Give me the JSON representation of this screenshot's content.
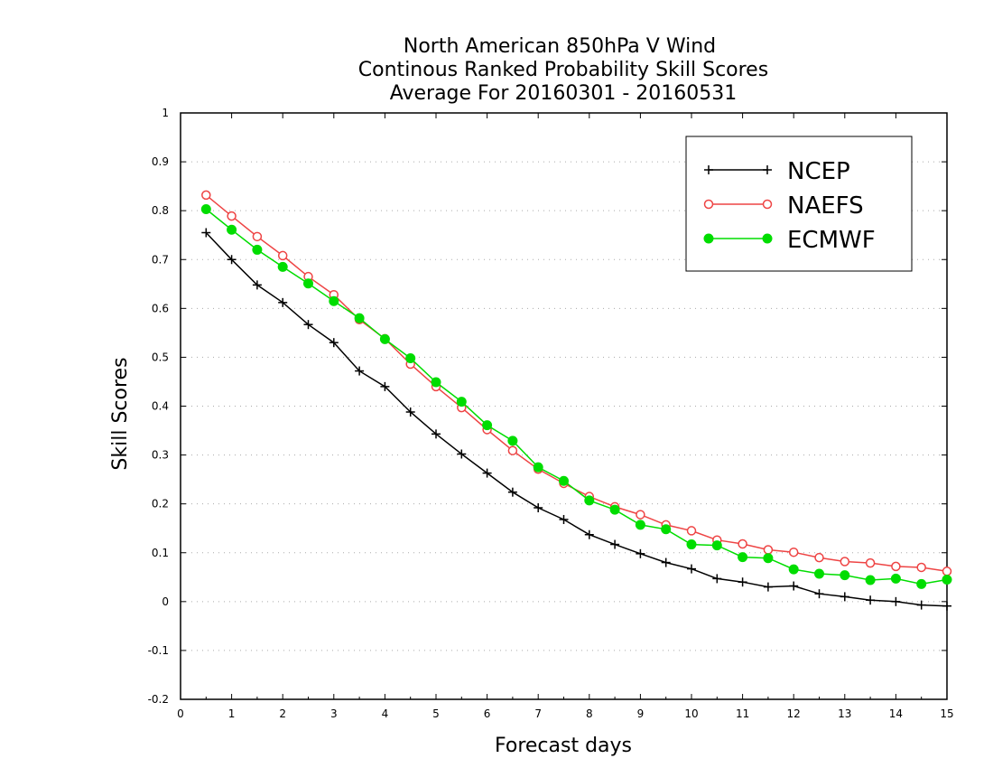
{
  "chart_data": {
    "type": "line",
    "title_lines": [
      "North American 850hPa V Wind",
      "Continous Ranked Probability Skill Scores",
      "Average For 20160301 - 20160531"
    ],
    "xlabel": "Forecast days",
    "ylabel": "Skill Scores",
    "xlim": [
      0,
      15
    ],
    "ylim": [
      -0.2,
      1
    ],
    "x_ticks": [
      0,
      1,
      2,
      3,
      4,
      5,
      6,
      7,
      8,
      9,
      10,
      11,
      12,
      13,
      14,
      15
    ],
    "x_tick_labels": [
      "0",
      "1",
      "2",
      "3",
      "4",
      "5",
      "6",
      "7",
      "8",
      "9",
      "10",
      "11",
      "12",
      "13",
      "14",
      "15"
    ],
    "y_ticks": [
      -0.2,
      -0.1,
      0,
      0.1,
      0.2,
      0.3,
      0.4,
      0.5,
      0.6,
      0.7,
      0.8,
      0.9,
      1
    ],
    "y_tick_labels": [
      "-0.2",
      "-0.1",
      "0",
      "0.1",
      "0.2",
      "0.3",
      "0.4",
      "0.5",
      "0.6",
      "0.7",
      "0.8",
      "0.9",
      "1"
    ],
    "grid": "horizontal dotted",
    "legend_position": "top-right",
    "x": [
      0.5,
      1,
      1.5,
      2,
      2.5,
      3,
      3.5,
      4,
      4.5,
      5,
      5.5,
      6,
      6.5,
      7,
      7.5,
      8,
      8.5,
      9,
      9.5,
      10,
      10.5,
      11,
      11.5,
      12,
      12.5,
      13,
      13.5,
      14,
      14.5,
      15
    ],
    "series": [
      {
        "name": "NCEP",
        "color": "#000000",
        "marker": "plus",
        "values": [
          0.755,
          0.7,
          0.648,
          0.612,
          0.567,
          0.53,
          0.472,
          0.44,
          0.388,
          0.343,
          0.302,
          0.263,
          0.224,
          0.192,
          0.168,
          0.137,
          0.117,
          0.098,
          0.08,
          0.067,
          0.047,
          0.04,
          0.03,
          0.032,
          0.016,
          0.01,
          0.003,
          0.0,
          -0.007,
          -0.009
        ]
      },
      {
        "name": "NAEFS",
        "color": "#ee4444",
        "marker": "open-circle",
        "values": [
          0.832,
          0.789,
          0.747,
          0.708,
          0.665,
          0.628,
          0.577,
          0.538,
          0.486,
          0.44,
          0.397,
          0.352,
          0.309,
          0.271,
          0.242,
          0.215,
          0.194,
          0.178,
          0.157,
          0.145,
          0.126,
          0.118,
          0.106,
          0.101,
          0.09,
          0.082,
          0.079,
          0.072,
          0.07,
          0.062
        ]
      },
      {
        "name": "ECMWF",
        "color": "#00dd00",
        "marker": "filled-circle",
        "values": [
          0.803,
          0.761,
          0.72,
          0.685,
          0.651,
          0.615,
          0.58,
          0.537,
          0.498,
          0.449,
          0.409,
          0.361,
          0.329,
          0.275,
          0.247,
          0.207,
          0.188,
          0.157,
          0.148,
          0.117,
          0.115,
          0.091,
          0.089,
          0.066,
          0.057,
          0.054,
          0.044,
          0.047,
          0.036,
          0.045
        ]
      }
    ]
  }
}
